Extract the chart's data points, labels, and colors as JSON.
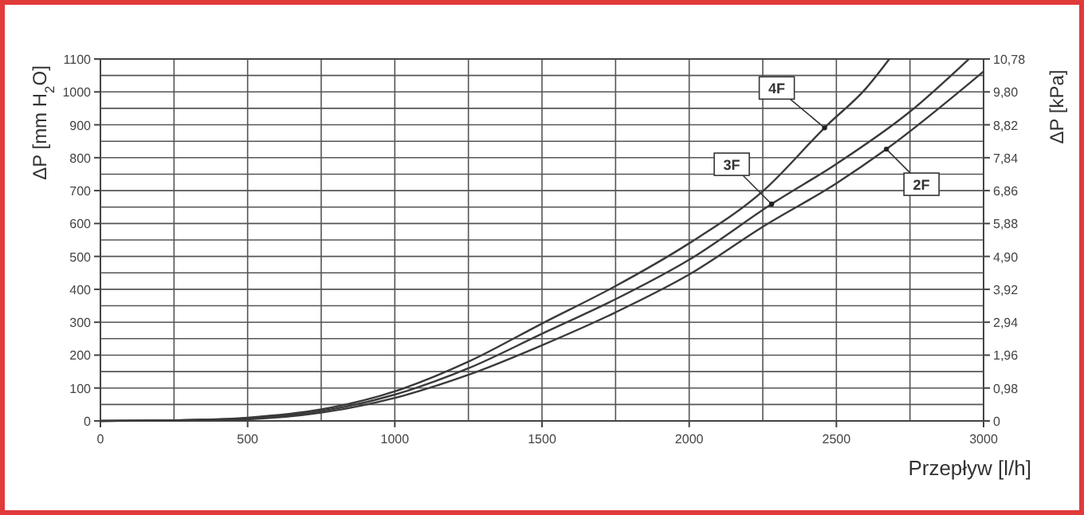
{
  "chart_data": {
    "type": "line",
    "xlabel": "Przepływ [l/h]",
    "ylabel": "ΔP [mm H$_{2}$O]",
    "y2label": "ΔP [kPa]",
    "xlim": [
      0,
      3000
    ],
    "xticks": [
      0,
      500,
      1000,
      1500,
      2000,
      2500,
      3000
    ],
    "ylim": [
      0,
      1100
    ],
    "yticks": [
      0,
      100,
      200,
      300,
      400,
      500,
      600,
      700,
      800,
      900,
      1000,
      1100
    ],
    "y2lim": [
      0,
      10.78
    ],
    "y2ticks": [
      0,
      {
        "value": 0.98,
        "label": "0,98"
      },
      {
        "value": 1.96,
        "label": "1,96"
      },
      {
        "value": 2.94,
        "label": "2,94"
      },
      {
        "value": 3.92,
        "label": "3,92"
      },
      {
        "value": 4.9,
        "label": "4,90"
      },
      {
        "value": 5.88,
        "label": "5,88"
      },
      {
        "value": 6.86,
        "label": "6,86"
      },
      {
        "value": 7.84,
        "label": "7,84"
      },
      {
        "value": 8.82,
        "label": "8,82"
      },
      {
        "value": 9.8,
        "label": "9,80"
      },
      {
        "value": 10.78,
        "label": "10,78"
      }
    ],
    "grid": true,
    "marker": "none",
    "line_style": "solid",
    "series": [
      {
        "name": "4F",
        "color": "#3a3a3a",
        "x": [
          0,
          250,
          500,
          750,
          1000,
          1250,
          1500,
          1750,
          2000,
          2250,
          2470,
          2600,
          2680
        ],
        "values": [
          0,
          2,
          10,
          35,
          90,
          180,
          296,
          410,
          540,
          698,
          900,
          1010,
          1100
        ]
      },
      {
        "name": "3F",
        "color": "#3a3a3a",
        "x": [
          0,
          250,
          500,
          750,
          1000,
          1250,
          1500,
          1750,
          2000,
          2290,
          2500,
          2750,
          2950
        ],
        "values": [
          0,
          2,
          8,
          30,
          80,
          160,
          265,
          370,
          490,
          665,
          781,
          940,
          1100
        ]
      },
      {
        "name": "2F",
        "color": "#3a3a3a",
        "x": [
          0,
          250,
          500,
          750,
          1000,
          1250,
          1500,
          1750,
          2000,
          2250,
          2500,
          2670,
          3000
        ],
        "values": [
          0,
          1,
          5,
          25,
          70,
          140,
          230,
          330,
          445,
          590,
          722,
          826,
          1062
        ]
      }
    ]
  }
}
